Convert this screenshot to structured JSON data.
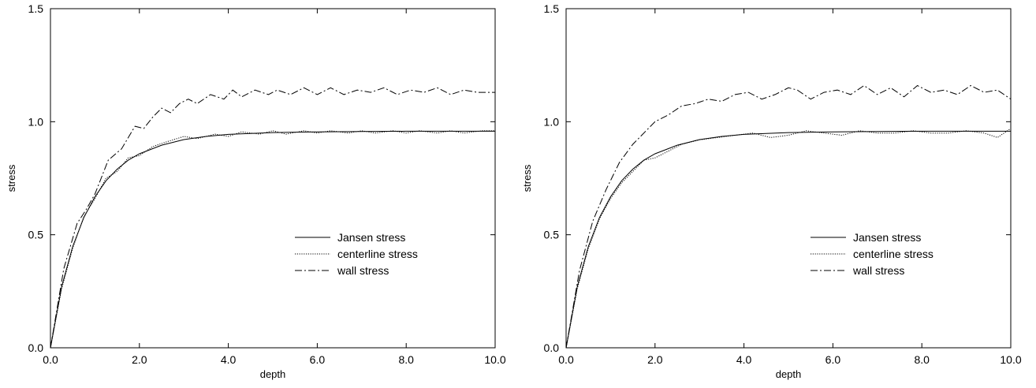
{
  "chart_data": [
    {
      "type": "line",
      "title": "",
      "xlabel": "depth",
      "ylabel": "stress",
      "xlim": [
        0,
        10
      ],
      "ylim": [
        0,
        1.5
      ],
      "x_ticks": [
        "0.0",
        "2.0",
        "4.0",
        "6.0",
        "8.0",
        "10.0"
      ],
      "y_ticks": [
        "0.0",
        "0.5",
        "1.0",
        "1.5"
      ],
      "grid": false,
      "legend_position": "lower-right",
      "series": [
        {
          "name": "Jansen stress",
          "style": "solid",
          "x": [
            0,
            0.25,
            0.5,
            0.75,
            1.0,
            1.25,
            1.5,
            1.75,
            2.0,
            2.5,
            3.0,
            3.5,
            4.0,
            5.0,
            6.0,
            7.0,
            8.0,
            9.0,
            10.0
          ],
          "y": [
            0,
            0.269,
            0.448,
            0.576,
            0.668,
            0.739,
            0.79,
            0.83,
            0.858,
            0.896,
            0.921,
            0.935,
            0.944,
            0.952,
            0.955,
            0.957,
            0.958,
            0.958,
            0.958
          ]
        },
        {
          "name": "centerline stress",
          "style": "dotted",
          "x": [
            0,
            0.25,
            0.5,
            0.75,
            1.0,
            1.25,
            1.5,
            1.75,
            2.0,
            2.3,
            2.6,
            3.0,
            3.3,
            3.7,
            4.0,
            4.3,
            4.7,
            5.0,
            5.3,
            5.7,
            6.0,
            6.3,
            6.7,
            7.0,
            7.3,
            7.7,
            8.0,
            8.3,
            8.7,
            9.0,
            9.3,
            9.7,
            10.0
          ],
          "y": [
            0,
            0.26,
            0.44,
            0.58,
            0.66,
            0.75,
            0.78,
            0.84,
            0.85,
            0.89,
            0.91,
            0.935,
            0.925,
            0.945,
            0.935,
            0.955,
            0.945,
            0.96,
            0.945,
            0.96,
            0.95,
            0.96,
            0.95,
            0.96,
            0.95,
            0.96,
            0.95,
            0.96,
            0.95,
            0.96,
            0.95,
            0.96,
            0.96
          ]
        },
        {
          "name": "wall stress",
          "style": "dash-dot",
          "x": [
            0,
            0.3,
            0.6,
            0.8,
            1.0,
            1.3,
            1.6,
            1.9,
            2.1,
            2.3,
            2.5,
            2.7,
            2.9,
            3.1,
            3.3,
            3.6,
            3.9,
            4.1,
            4.3,
            4.6,
            4.9,
            5.1,
            5.4,
            5.7,
            6.0,
            6.3,
            6.6,
            6.9,
            7.2,
            7.5,
            7.8,
            8.1,
            8.4,
            8.7,
            9.0,
            9.3,
            9.6,
            10.0
          ],
          "y": [
            0,
            0.35,
            0.55,
            0.61,
            0.68,
            0.83,
            0.88,
            0.98,
            0.97,
            1.02,
            1.06,
            1.04,
            1.08,
            1.1,
            1.08,
            1.12,
            1.1,
            1.14,
            1.11,
            1.14,
            1.12,
            1.14,
            1.12,
            1.15,
            1.12,
            1.15,
            1.12,
            1.14,
            1.13,
            1.15,
            1.12,
            1.14,
            1.13,
            1.15,
            1.12,
            1.14,
            1.13,
            1.13
          ]
        }
      ]
    },
    {
      "type": "line",
      "title": "",
      "xlabel": "depth",
      "ylabel": "stress",
      "xlim": [
        0,
        10
      ],
      "ylim": [
        0,
        1.5
      ],
      "x_ticks": [
        "0.0",
        "2.0",
        "4.0",
        "6.0",
        "8.0",
        "10.0"
      ],
      "y_ticks": [
        "0.0",
        "0.5",
        "1.0",
        "1.5"
      ],
      "grid": false,
      "legend_position": "lower-right",
      "series": [
        {
          "name": "Jansen stress",
          "style": "solid",
          "x": [
            0,
            0.25,
            0.5,
            0.75,
            1.0,
            1.25,
            1.5,
            1.75,
            2.0,
            2.5,
            3.0,
            3.5,
            4.0,
            5.0,
            6.0,
            7.0,
            8.0,
            9.0,
            10.0
          ],
          "y": [
            0,
            0.269,
            0.448,
            0.576,
            0.668,
            0.739,
            0.79,
            0.83,
            0.858,
            0.896,
            0.921,
            0.935,
            0.944,
            0.952,
            0.955,
            0.957,
            0.958,
            0.958,
            0.958
          ]
        },
        {
          "name": "centerline stress",
          "style": "dotted",
          "x": [
            0,
            0.25,
            0.5,
            0.75,
            1.0,
            1.25,
            1.5,
            1.75,
            2.0,
            2.3,
            2.6,
            3.0,
            3.4,
            3.8,
            4.2,
            4.6,
            5.0,
            5.4,
            5.8,
            6.2,
            6.6,
            7.0,
            7.4,
            7.8,
            8.2,
            8.6,
            9.0,
            9.4,
            9.7,
            10.0
          ],
          "y": [
            0,
            0.26,
            0.44,
            0.57,
            0.66,
            0.73,
            0.78,
            0.83,
            0.84,
            0.87,
            0.9,
            0.92,
            0.93,
            0.94,
            0.95,
            0.93,
            0.94,
            0.96,
            0.95,
            0.94,
            0.96,
            0.95,
            0.95,
            0.96,
            0.95,
            0.95,
            0.96,
            0.95,
            0.93,
            0.97
          ]
        },
        {
          "name": "wall stress",
          "style": "dash-dot",
          "x": [
            0,
            0.3,
            0.6,
            0.9,
            1.2,
            1.5,
            1.8,
            2.0,
            2.3,
            2.6,
            2.9,
            3.2,
            3.5,
            3.8,
            4.1,
            4.4,
            4.7,
            5.0,
            5.2,
            5.5,
            5.8,
            6.1,
            6.4,
            6.7,
            7.0,
            7.3,
            7.6,
            7.9,
            8.2,
            8.5,
            8.8,
            9.1,
            9.4,
            9.7,
            10.0
          ],
          "y": [
            0,
            0.34,
            0.56,
            0.7,
            0.82,
            0.9,
            0.96,
            1.0,
            1.03,
            1.07,
            1.08,
            1.1,
            1.09,
            1.12,
            1.13,
            1.1,
            1.12,
            1.15,
            1.14,
            1.1,
            1.13,
            1.14,
            1.12,
            1.16,
            1.12,
            1.15,
            1.11,
            1.16,
            1.13,
            1.14,
            1.12,
            1.16,
            1.13,
            1.14,
            1.1
          ]
        }
      ]
    }
  ]
}
